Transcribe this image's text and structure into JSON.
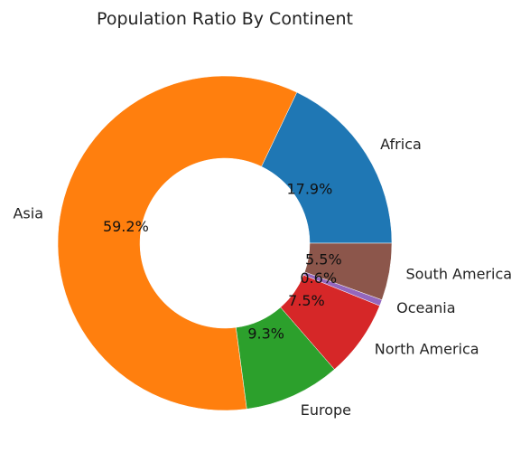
{
  "chart_data": {
    "type": "pie",
    "title": "Population Ratio By Continent",
    "donut": true,
    "start_angle_deg": 0,
    "direction": "counterclockwise",
    "categories": [
      "Africa",
      "Asia",
      "Europe",
      "North America",
      "Oceania",
      "South America"
    ],
    "values": [
      17.9,
      59.2,
      9.3,
      7.5,
      0.6,
      5.5
    ],
    "percent_labels": [
      "17.9%",
      "59.2%",
      "9.3%",
      "7.5%",
      "0.6%",
      "5.5%"
    ],
    "colors": [
      "#1f77b4",
      "#ff7f0e",
      "#2ca02c",
      "#d62728",
      "#9467bd",
      "#8c564b"
    ]
  }
}
